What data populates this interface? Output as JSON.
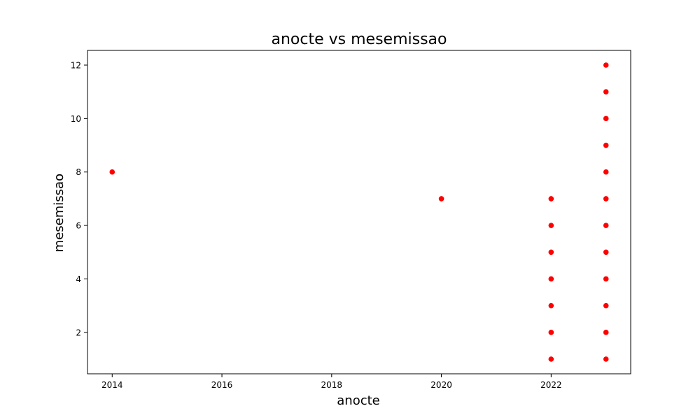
{
  "chart_data": {
    "type": "scatter",
    "title": "anocte vs mesemissao",
    "xlabel": "anocte",
    "ylabel": "mesemissao",
    "xlim": [
      2013.55,
      2023.45
    ],
    "ylim": [
      0.45,
      12.55
    ],
    "xticks": [
      2014,
      2016,
      2018,
      2020,
      2022
    ],
    "yticks": [
      2,
      4,
      6,
      8,
      10,
      12
    ],
    "grid": false,
    "marker_color": "#ff0000",
    "series": [
      {
        "points": [
          {
            "x": 2014,
            "y": 8
          },
          {
            "x": 2020,
            "y": 7
          },
          {
            "x": 2022,
            "y": 1
          },
          {
            "x": 2022,
            "y": 2
          },
          {
            "x": 2022,
            "y": 3
          },
          {
            "x": 2022,
            "y": 4
          },
          {
            "x": 2022,
            "y": 5
          },
          {
            "x": 2022,
            "y": 6
          },
          {
            "x": 2022,
            "y": 7
          },
          {
            "x": 2023,
            "y": 1
          },
          {
            "x": 2023,
            "y": 2
          },
          {
            "x": 2023,
            "y": 3
          },
          {
            "x": 2023,
            "y": 4
          },
          {
            "x": 2023,
            "y": 5
          },
          {
            "x": 2023,
            "y": 6
          },
          {
            "x": 2023,
            "y": 7
          },
          {
            "x": 2023,
            "y": 8
          },
          {
            "x": 2023,
            "y": 9
          },
          {
            "x": 2023,
            "y": 10
          },
          {
            "x": 2023,
            "y": 11
          },
          {
            "x": 2023,
            "y": 12
          }
        ]
      }
    ]
  }
}
